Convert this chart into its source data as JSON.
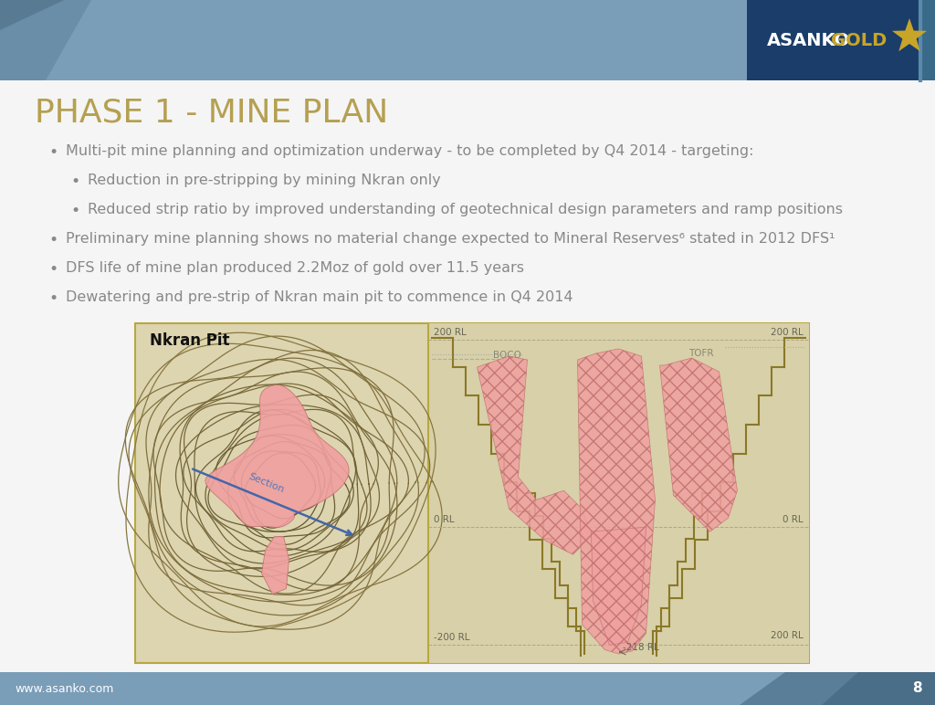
{
  "title": "PHASE 1 - MINE PLAN",
  "title_color": "#b5a050",
  "title_fontsize": 26,
  "bg_color": "#f5f5f5",
  "header_bg": "#7a9db8",
  "header_bg_dark": "#5a7d98",
  "footer_bg": "#7a9db8",
  "logo_box_bg": "#1a3d6a",
  "logo_text_asanko": "ASANKO",
  "logo_text_gold": "GOLD",
  "footer_url": "www.asanko.com",
  "footer_page": "8",
  "bullet_color": "#888888",
  "bullet_fontsize": 11.5,
  "bullets": [
    {
      "level": 1,
      "text": "Multi-pit mine planning and optimization underway - to be completed by Q4 2014 - targeting:"
    },
    {
      "level": 2,
      "text": "Reduction in pre-stripping by mining Nkran only"
    },
    {
      "level": 2,
      "text": "Reduced strip ratio by improved understanding of geotechnical design parameters and ramp positions"
    },
    {
      "level": 1,
      "text": "Preliminary mine planning shows no material change expected to Mineral Reserves⁶ stated in 2012 DFS¹"
    },
    {
      "level": 1,
      "text": "DFS life of mine plan produced 2.2Moz of gold over 11.5 years"
    },
    {
      "level": 1,
      "text": "Dewatering and pre-strip of Nkran main pit to commence in Q4 2014"
    }
  ],
  "nkran_pit_label": "Nkran Pit",
  "section_label": "Section",
  "boco_label": "BOCO",
  "tofr_label": "TOFR",
  "image_border_color": "#b8a840",
  "image_bg_left": "#ddd5b0",
  "image_bg_right": "#ddd5b0",
  "ore_color": "#f0a0a0",
  "ore_edge": "#c07070",
  "pit_line_color": "#8a7828",
  "rl_text_color": "#666655"
}
